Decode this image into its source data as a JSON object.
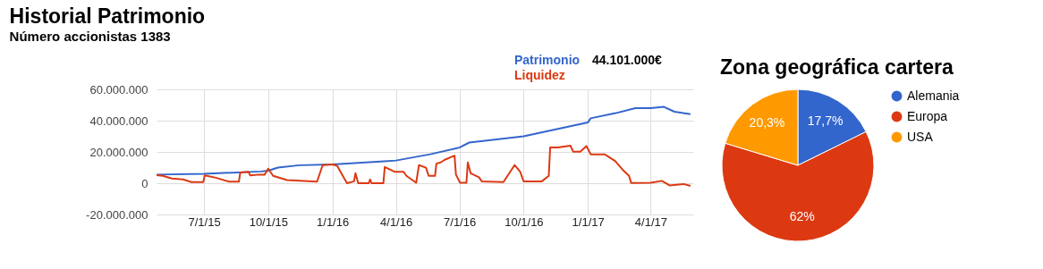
{
  "chart_data": [
    {
      "type": "line",
      "title": "Historial Patrimonio",
      "subtitle": "Número accionistas 1383",
      "series": [
        {
          "name": "Patrimonio",
          "color": "#3366cc",
          "x": [
            "2015-04-24",
            "2015-07-01",
            "2015-09-20",
            "2015-10-01",
            "2015-10-15",
            "2015-11-15",
            "2016-01-01",
            "2016-03-15",
            "2016-04-01",
            "2016-05-20",
            "2016-07-01",
            "2016-07-15",
            "2016-10-01",
            "2017-01-01",
            "2017-01-05",
            "2017-02-10",
            "2017-03-10",
            "2017-04-01",
            "2017-04-20",
            "2017-05-05",
            "2017-05-28"
          ],
          "values": [
            5500000,
            6000000,
            7500000,
            8000000,
            10000000,
            11500000,
            12000000,
            14000000,
            14500000,
            18500000,
            22800000,
            26000000,
            30000000,
            38800000,
            41500000,
            44800000,
            48000000,
            48000000,
            48800000,
            45700000,
            44100000
          ]
        },
        {
          "name": "Liquidez",
          "color": "#dc3912",
          "x": [
            "2015-04-24",
            "2015-05-03",
            "2015-05-16",
            "2015-06-01",
            "2015-06-13",
            "2015-06-30",
            "2015-07-02",
            "2015-07-18",
            "2015-08-06",
            "2015-08-20",
            "2015-08-22",
            "2015-09-03",
            "2015-09-05",
            "2015-09-18",
            "2015-09-26",
            "2015-10-01",
            "2015-10-08",
            "2015-10-28",
            "2015-12-10",
            "2015-12-18",
            "2016-01-02",
            "2016-01-08",
            "2016-01-18",
            "2016-01-22",
            "2016-02-01",
            "2016-02-03",
            "2016-02-07",
            "2016-02-22",
            "2016-02-24",
            "2016-02-26",
            "2016-03-14",
            "2016-03-16",
            "2016-03-30",
            "2016-04-12",
            "2016-04-16",
            "2016-04-30",
            "2016-05-04",
            "2016-05-14",
            "2016-05-18",
            "2016-05-27",
            "2016-05-29",
            "2016-06-04",
            "2016-06-10",
            "2016-06-24",
            "2016-06-26",
            "2016-07-02",
            "2016-07-11",
            "2016-07-13",
            "2016-07-17",
            "2016-07-29",
            "2016-08-02",
            "2016-09-02",
            "2016-09-18",
            "2016-09-26",
            "2016-10-01",
            "2016-10-27",
            "2016-11-06",
            "2016-11-08",
            "2016-11-19",
            "2016-12-07",
            "2016-12-11",
            "2016-12-21",
            "2016-12-30",
            "2017-01-05",
            "2017-01-25",
            "2017-02-09",
            "2017-02-21",
            "2017-03-01",
            "2017-03-04",
            "2017-04-01",
            "2017-04-17",
            "2017-04-28",
            "2017-05-18",
            "2017-05-28"
          ],
          "values": [
            5200000,
            4700000,
            3000000,
            2400000,
            700000,
            700000,
            5000000,
            3500000,
            1000000,
            1000000,
            6900000,
            7300000,
            5000000,
            5500000,
            5500000,
            9300000,
            4700000,
            2000000,
            1000000,
            11600000,
            12000000,
            11000000,
            3000000,
            0,
            1200000,
            6400000,
            0,
            0,
            2400000,
            0,
            0,
            10400000,
            7300000,
            7300000,
            4700000,
            300000,
            11600000,
            9900000,
            4700000,
            4700000,
            12500000,
            13300000,
            15000000,
            17600000,
            5500000,
            300000,
            300000,
            13300000,
            6400000,
            3800000,
            1200000,
            700000,
            11600000,
            7300000,
            1200000,
            1200000,
            4700000,
            22800000,
            22800000,
            24000000,
            20200000,
            20200000,
            23700000,
            18500000,
            18500000,
            14200000,
            8100000,
            4700000,
            200000,
            300000,
            1500000,
            -1400000,
            -500000,
            -1700000
          ]
        }
      ],
      "annotations": [
        "44.101.000€"
      ],
      "xlim": [
        "2015-04-24",
        "2017-06-01"
      ],
      "xticks": [
        {
          "value": "2015-07-01",
          "label": "7/1/15"
        },
        {
          "value": "2015-10-01",
          "label": "10/1/15"
        },
        {
          "value": "2016-01-01",
          "label": "1/1/16"
        },
        {
          "value": "2016-04-01",
          "label": "4/1/16"
        },
        {
          "value": "2016-07-01",
          "label": "7/1/16"
        },
        {
          "value": "2016-10-01",
          "label": "10/1/16"
        },
        {
          "value": "2017-01-01",
          "label": "1/1/17"
        },
        {
          "value": "2017-04-01",
          "label": "4/1/17"
        }
      ],
      "ylim": [
        -20000000,
        60000000
      ],
      "yticks": [
        {
          "value": -20000000,
          "label": "-20.000.000"
        },
        {
          "value": 0,
          "label": "0"
        },
        {
          "value": 20000000,
          "label": "20.000.000"
        },
        {
          "value": 40000000,
          "label": "40.000.000"
        },
        {
          "value": 60000000,
          "label": "60.000.000"
        }
      ],
      "grid": true,
      "legend": "top right",
      "line_style": "solid",
      "marker": "none"
    },
    {
      "type": "pie",
      "title": "Zona geográfica cartera",
      "categories": [
        "Alemania",
        "Europa",
        "USA"
      ],
      "values": [
        17.7,
        62,
        20.3
      ],
      "colors": [
        "#3366cc",
        "#dc3912",
        "#ff9900"
      ],
      "value_labels": [
        "17,7%",
        "62%",
        "20,3%"
      ],
      "legend": "right"
    }
  ]
}
